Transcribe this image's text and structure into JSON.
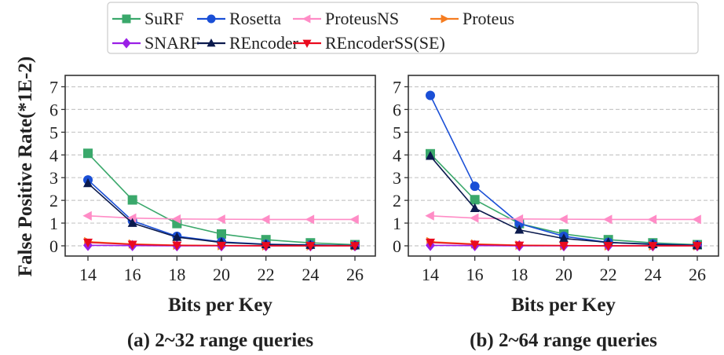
{
  "chart_data": {
    "ylabel": "False Positive Rate(*1E-2)",
    "legend": {
      "placement": "top-center",
      "entries": [
        {
          "name": "SuRF",
          "color": "#3aa86b",
          "marker": "square"
        },
        {
          "name": "Rosetta",
          "color": "#1a4fd6",
          "marker": "circle"
        },
        {
          "name": "ProteusNS",
          "color": "#ff8cc6",
          "marker": "triangle-left"
        },
        {
          "name": "Proteus",
          "color": "#f57c20",
          "marker": "triangle-right"
        },
        {
          "name": "SNARF",
          "color": "#9a1fe6",
          "marker": "diamond"
        },
        {
          "name": "REncoder",
          "color": "#0b1a4d",
          "marker": "triangle-up"
        },
        {
          "name": "REncoderSS(SE)",
          "color": "#ea0a1e",
          "marker": "triangle-down"
        }
      ]
    },
    "panels": [
      {
        "type": "line",
        "caption": "(a) 2~32 range queries",
        "xlabel": "Bits per Key",
        "x": [
          14,
          16,
          18,
          20,
          22,
          24,
          26
        ],
        "ylim": [
          -0.45,
          7.5
        ],
        "yticks": [
          0,
          1,
          2,
          3,
          4,
          5,
          6,
          7
        ],
        "grid": "horizontal dashed",
        "series": [
          {
            "name": "SuRF",
            "values": [
              4.07,
              2.02,
              0.98,
              0.52,
              0.27,
              0.13,
              0.05
            ]
          },
          {
            "name": "Rosetta",
            "values": [
              2.9,
              1.1,
              0.42,
              0.17,
              0.07,
              0.04,
              0.01
            ]
          },
          {
            "name": "ProteusNS",
            "values": [
              1.32,
              1.22,
              1.18,
              1.17,
              1.16,
              1.16,
              1.16
            ]
          },
          {
            "name": "Proteus",
            "values": [
              0.18,
              0.08,
              0.03,
              0.01,
              0.0,
              0.0,
              0.0
            ]
          },
          {
            "name": "SNARF",
            "values": [
              0.02,
              0.01,
              0.0,
              0.0,
              0.0,
              0.0,
              0.0
            ]
          },
          {
            "name": "REncoder",
            "values": [
              2.75,
              1.0,
              0.38,
              0.15,
              0.06,
              0.03,
              0.01
            ]
          },
          {
            "name": "REncoderSS(SE)",
            "values": [
              0.15,
              0.06,
              0.02,
              0.01,
              0.0,
              0.0,
              0.0
            ]
          }
        ]
      },
      {
        "type": "line",
        "caption": "(b) 2~64 range queries",
        "xlabel": "Bits per Key",
        "x": [
          14,
          16,
          18,
          20,
          22,
          24,
          26
        ],
        "ylim": [
          -0.45,
          7.5
        ],
        "yticks": [
          0,
          1,
          2,
          3,
          4,
          5,
          6,
          7
        ],
        "grid": "horizontal dashed",
        "series": [
          {
            "name": "SuRF",
            "values": [
              4.05,
              2.03,
              0.98,
              0.52,
              0.27,
              0.13,
              0.05
            ]
          },
          {
            "name": "Rosetta",
            "values": [
              6.62,
              2.62,
              0.98,
              0.42,
              0.15,
              0.08,
              0.03
            ]
          },
          {
            "name": "ProteusNS",
            "values": [
              1.32,
              1.22,
              1.18,
              1.17,
              1.16,
              1.16,
              1.16
            ]
          },
          {
            "name": "Proteus",
            "values": [
              0.18,
              0.08,
              0.03,
              0.01,
              0.0,
              0.0,
              0.0
            ]
          },
          {
            "name": "SNARF",
            "values": [
              0.02,
              0.01,
              0.0,
              0.0,
              0.0,
              0.0,
              0.0
            ]
          },
          {
            "name": "REncoder",
            "values": [
              3.95,
              1.65,
              0.7,
              0.32,
              0.15,
              0.06,
              0.02
            ]
          },
          {
            "name": "REncoderSS(SE)",
            "values": [
              0.15,
              0.06,
              0.02,
              0.01,
              0.0,
              0.0,
              0.0
            ]
          }
        ]
      }
    ]
  }
}
